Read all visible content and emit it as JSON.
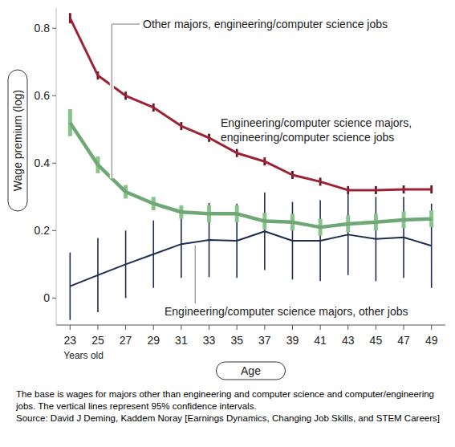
{
  "chart_data": {
    "type": "line",
    "y_label": "Wage premium (log)",
    "x_label": "Age",
    "x_sublabel": "Years old",
    "notes": [
      "The base is wages for majors other than engineering and computer science and computer/engineering jobs. The vertical lines represent 95% confidence intervals.",
      "Source: David J Deming, Kaddem Noray [Earnings Dynamics, Changing Job Skills, and STEM Careers]"
    ],
    "x": [
      23,
      25,
      27,
      29,
      31,
      33,
      35,
      37,
      39,
      41,
      43,
      45,
      47,
      49
    ],
    "xlim": [
      22,
      50
    ],
    "xticks": [
      23,
      25,
      27,
      29,
      31,
      33,
      35,
      37,
      39,
      41,
      43,
      45,
      47,
      49
    ],
    "ylim": [
      -0.08,
      0.86
    ],
    "yticks": [
      0,
      0.2,
      0.4,
      0.6,
      0.8
    ],
    "grid": false,
    "series": [
      {
        "name": "Engineering/computer science majors, other jobs",
        "color": "#1f2d52",
        "values": [
          0.035,
          0.068,
          0.1,
          0.13,
          0.16,
          0.172,
          0.17,
          0.198,
          0.17,
          0.17,
          0.188,
          0.175,
          0.18,
          0.155
        ],
        "errors": [
          0.1,
          0.11,
          0.1,
          0.1,
          0.1,
          0.11,
          0.11,
          0.115,
          0.115,
          0.12,
          0.12,
          0.125,
          0.12,
          0.125
        ]
      },
      {
        "name": "Other majors, engineering/computer science jobs",
        "color": "#6fa876",
        "values": [
          0.52,
          0.395,
          0.315,
          0.28,
          0.255,
          0.25,
          0.25,
          0.228,
          0.225,
          0.21,
          0.22,
          0.225,
          0.232,
          0.235
        ],
        "errors": [
          0.04,
          0.025,
          0.02,
          0.02,
          0.02,
          0.025,
          0.025,
          0.025,
          0.025,
          0.025,
          0.025,
          0.025,
          0.025,
          0.025
        ]
      },
      {
        "name": "Engineering/computer science majors, engineering/computer science jobs",
        "color": "#9b2335",
        "values": [
          0.83,
          0.66,
          0.6,
          0.565,
          0.51,
          0.475,
          0.43,
          0.405,
          0.365,
          0.345,
          0.32,
          0.32,
          0.322,
          0.322
        ],
        "errors": [
          0.015,
          0.012,
          0.012,
          0.012,
          0.012,
          0.012,
          0.012,
          0.012,
          0.012,
          0.012,
          0.012,
          0.012,
          0.012,
          0.012
        ]
      }
    ]
  }
}
